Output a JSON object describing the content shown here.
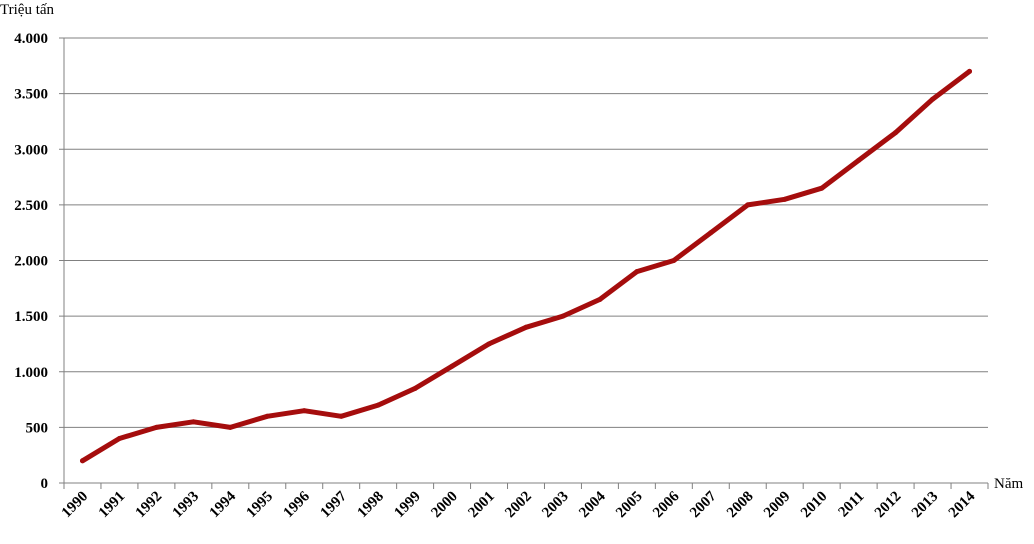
{
  "chart_data": {
    "type": "line",
    "title": "",
    "title_color": "#00b050",
    "ylabel": "Triệu tấn",
    "xlabel": "Năm",
    "ylim": [
      0,
      4000
    ],
    "grid": true,
    "legend": "none",
    "line_color": "#a50d0d",
    "x": [
      1990,
      1991,
      1992,
      1993,
      1994,
      1995,
      1996,
      1997,
      1998,
      1999,
      2000,
      2001,
      2002,
      2003,
      2004,
      2005,
      2006,
      2007,
      2008,
      2009,
      2010,
      2011,
      2012,
      2013,
      2014
    ],
    "x_tick_labels": [
      "1990",
      "1991",
      "1992",
      "1993",
      "1994",
      "1995",
      "1996",
      "1997",
      "1998",
      "1999",
      "2000",
      "2001",
      "2002",
      "2003",
      "2004",
      "2005",
      "2006",
      "2007",
      "2008",
      "2009",
      "2010",
      "2011",
      "2012",
      "2013",
      "2014"
    ],
    "y_ticks": [
      0,
      500,
      1000,
      1500,
      2000,
      2500,
      3000,
      3500,
      4000
    ],
    "y_tick_labels": [
      "0",
      "500",
      "1.000",
      "1.500",
      "2.000",
      "2.500",
      "3.000",
      "3.500",
      "4.000"
    ],
    "series": [
      {
        "values": [
          200,
          400,
          500,
          550,
          500,
          600,
          650,
          600,
          700,
          850,
          1050,
          1250,
          1400,
          1500,
          1650,
          1900,
          2000,
          2250,
          2500,
          2550,
          2650,
          2900,
          3150,
          3450,
          3700
        ]
      }
    ]
  }
}
